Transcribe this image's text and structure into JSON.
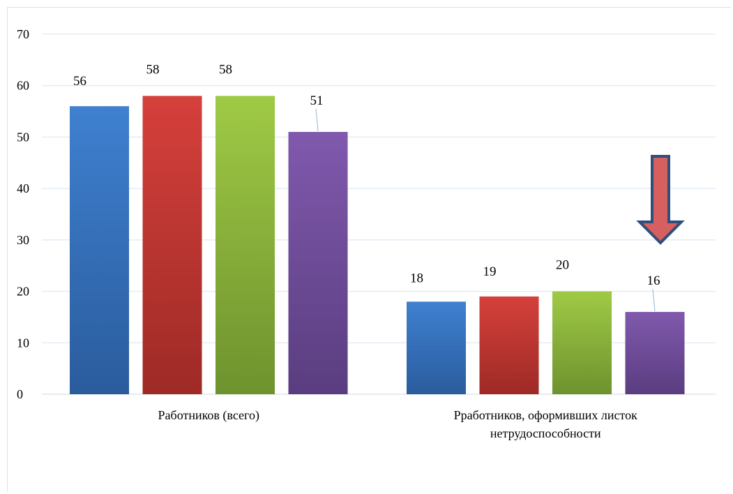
{
  "chart_data": {
    "type": "bar",
    "categories": [
      [
        "Работников (всего)"
      ],
      [
        "Рработников, оформивших листок",
        "нетрудоспособности"
      ]
    ],
    "series": [
      {
        "color": "#3a78c5",
        "values": [
          56,
          18
        ]
      },
      {
        "color": "#c93b37",
        "values": [
          58,
          19
        ]
      },
      {
        "color": "#93bb3f",
        "values": [
          58,
          20
        ]
      },
      {
        "color": "#7856a2",
        "values": [
          51,
          16
        ]
      }
    ],
    "ylim": [
      0,
      70
    ],
    "yticks": [
      0,
      10,
      20,
      30,
      40,
      50,
      60,
      70
    ],
    "grid": true,
    "legend": "none",
    "annotation": {
      "type": "down-arrow",
      "color": "#d65f5f",
      "target_category": 1
    }
  }
}
